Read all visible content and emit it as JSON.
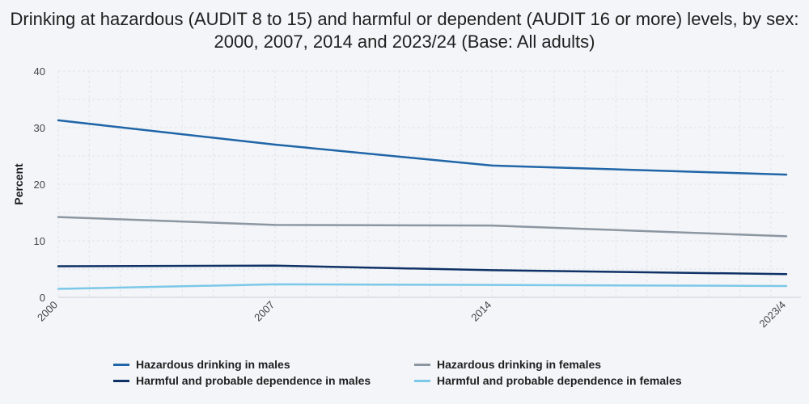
{
  "chart_data": {
    "type": "line",
    "title": "Drinking at hazardous (AUDIT 8 to 15) and harmful or dependent (AUDIT 16 or more) levels, by sex: 2000, 2007, 2014 and 2023/24 (Base: All adults)",
    "xlabel": "",
    "ylabel": "Percent",
    "ylim": [
      0,
      40
    ],
    "yticks": [
      0,
      10,
      20,
      30,
      40
    ],
    "categories": [
      "2000",
      "2007",
      "2014",
      "2023/4"
    ],
    "x_positions": [
      2000,
      2007,
      2014,
      2023.5
    ],
    "grid": true,
    "legend_position": "bottom",
    "series": [
      {
        "name": "Hazardous drinking in males",
        "color": "#1f65a8",
        "values": [
          31.3,
          27.0,
          23.3,
          21.7
        ]
      },
      {
        "name": "Hazardous drinking in females",
        "color": "#8c96a1",
        "values": [
          14.2,
          12.8,
          12.7,
          10.8
        ]
      },
      {
        "name": "Harmful and probable dependence in males",
        "color": "#0f3166",
        "values": [
          5.5,
          5.6,
          4.8,
          4.1
        ]
      },
      {
        "name": "Harmful and probable dependence in females",
        "color": "#7cc8e8",
        "values": [
          1.5,
          2.3,
          2.2,
          2.0
        ]
      }
    ]
  }
}
